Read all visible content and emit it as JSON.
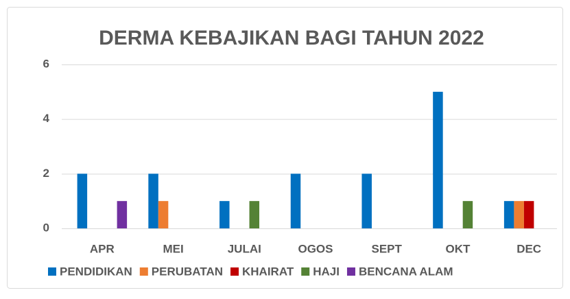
{
  "chart_data": {
    "type": "bar",
    "title": "DERMA KEBAJIKAN BAGI TAHUN 2022",
    "categories": [
      "APR",
      "MEI",
      "JULAI",
      "OGOS",
      "SEPT",
      "OKT",
      "DEC"
    ],
    "series": [
      {
        "name": "PENDIDIKAN",
        "color": "#0070C0",
        "values": [
          2,
          2,
          1,
          2,
          2,
          5,
          1
        ]
      },
      {
        "name": "PERUBATAN",
        "color": "#ED7D31",
        "values": [
          0,
          1,
          0,
          0,
          0,
          0,
          1
        ]
      },
      {
        "name": "KHAIRAT",
        "color": "#C00000",
        "values": [
          0,
          0,
          0,
          0,
          0,
          0,
          1
        ]
      },
      {
        "name": "HAJI",
        "color": "#548235",
        "values": [
          0,
          0,
          1,
          0,
          0,
          1,
          0
        ]
      },
      {
        "name": "BENCANA ALAM",
        "color": "#7030A0",
        "values": [
          1,
          0,
          0,
          0,
          0,
          0,
          0
        ]
      }
    ],
    "ylim": [
      0,
      6
    ],
    "yticks": [
      0,
      2,
      4,
      6
    ],
    "grid": true,
    "legend": "bottom"
  }
}
